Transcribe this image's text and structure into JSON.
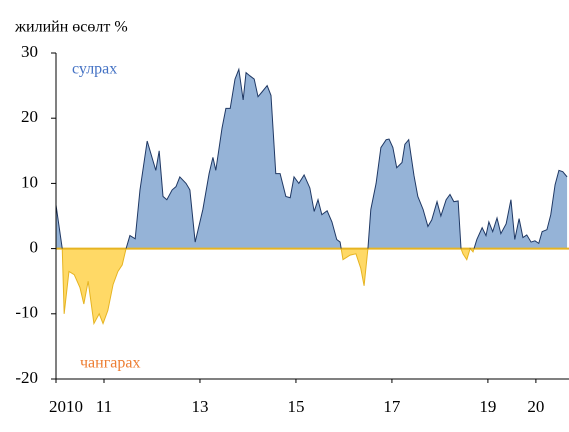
{
  "chart_data": {
    "type": "area",
    "subtitle": "жилийн өсөлт %",
    "annotations": [
      {
        "text": "сулрах",
        "color": "#4472c4"
      },
      {
        "text": "чангарах",
        "color": "#ed7d31"
      }
    ],
    "x": [
      2010.0,
      2010.13,
      2010.17,
      2010.27,
      2010.38,
      2010.5,
      2010.58,
      2010.67,
      2010.79,
      2010.9,
      2010.98,
      2011.08,
      2011.19,
      2011.29,
      2011.38,
      2011.46,
      2011.54,
      2011.65,
      2011.75,
      2011.9,
      2012.02,
      2012.08,
      2012.15,
      2012.23,
      2012.31,
      2012.42,
      2012.5,
      2012.58,
      2012.71,
      2012.79,
      2012.9,
      2013.06,
      2013.19,
      2013.27,
      2013.33,
      2013.46,
      2013.54,
      2013.63,
      2013.73,
      2013.81,
      2013.9,
      2013.96,
      2014.04,
      2014.13,
      2014.21,
      2014.29,
      2014.4,
      2014.48,
      2014.58,
      2014.67,
      2014.79,
      2014.88,
      2014.96,
      2015.06,
      2015.17,
      2015.29,
      2015.38,
      2015.46,
      2015.54,
      2015.65,
      2015.75,
      2015.85,
      2015.92,
      2015.98,
      2016.13,
      2016.25,
      2016.35,
      2016.42,
      2016.5,
      2016.56,
      2016.67,
      2016.77,
      2016.88,
      2016.94,
      2017.02,
      2017.1,
      2017.21,
      2017.27,
      2017.35,
      2017.46,
      2017.54,
      2017.65,
      2017.75,
      2017.83,
      2017.94,
      2018.02,
      2018.13,
      2018.21,
      2018.29,
      2018.38,
      2018.44,
      2018.48,
      2018.56,
      2018.63,
      2018.69,
      2018.77,
      2018.88,
      2018.96,
      2019.02,
      2019.1,
      2019.19,
      2019.27,
      2019.38,
      2019.48,
      2019.56,
      2019.65,
      2019.73,
      2019.81,
      2019.9,
      2019.98,
      2020.06,
      2020.13,
      2020.23,
      2020.31,
      2020.4,
      2020.48,
      2020.56,
      2020.65
    ],
    "series": [
      {
        "positive_color": "#95b3d7",
        "negative_color": "#ffd966",
        "line_color": "#1f3864",
        "negative_line_color": "#e6b422",
        "values": [
          6.7,
          0,
          -10,
          -3.5,
          -4,
          -6,
          -8.5,
          -5,
          -11.5,
          -10,
          -11.5,
          -9.5,
          -5.5,
          -3.5,
          -2.5,
          0,
          2,
          1.5,
          9,
          16.5,
          13.5,
          12,
          15,
          8,
          7.5,
          9,
          9.5,
          11,
          10,
          9,
          1,
          6,
          11.5,
          14,
          12,
          18.5,
          21.5,
          21.5,
          26,
          27.5,
          22.8,
          27,
          26.5,
          26,
          23.3,
          24,
          25,
          23.5,
          11.5,
          11.5,
          8,
          7.8,
          11,
          10,
          11.3,
          9.3,
          5.7,
          7.5,
          5.2,
          5.8,
          4.1,
          1.4,
          1,
          -1.7,
          -1,
          -0.8,
          -3,
          -5.7,
          0,
          6,
          10,
          15.5,
          16.7,
          16.8,
          15.5,
          12.4,
          13.2,
          16,
          16.7,
          11.2,
          8,
          6,
          3.4,
          4.4,
          7.2,
          5,
          7.5,
          8.3,
          7.2,
          7.3,
          0,
          -0.8,
          -1.7,
          0,
          -0.5,
          1.4,
          3.2,
          2,
          4.1,
          2.6,
          4.7,
          2.3,
          3.8,
          7.5,
          1.4,
          4.6,
          1.7,
          2.1,
          1,
          1.2,
          0.8,
          2.6,
          2.9,
          5.2,
          9.8,
          12,
          11.8,
          11
        ]
      }
    ],
    "xlim": [
      2010,
      2020.69
    ],
    "xticks": [
      {
        "value": 2010,
        "label": "2010"
      },
      {
        "value": 2011,
        "label": "11"
      },
      {
        "value": 2013,
        "label": "13"
      },
      {
        "value": 2015,
        "label": "15"
      },
      {
        "value": 2017,
        "label": "17"
      },
      {
        "value": 2019,
        "label": "19"
      },
      {
        "value": 2020,
        "label": "20"
      }
    ],
    "ylim": [
      -20,
      30
    ],
    "yticks": [
      -20,
      -10,
      0,
      10,
      20,
      30
    ]
  }
}
